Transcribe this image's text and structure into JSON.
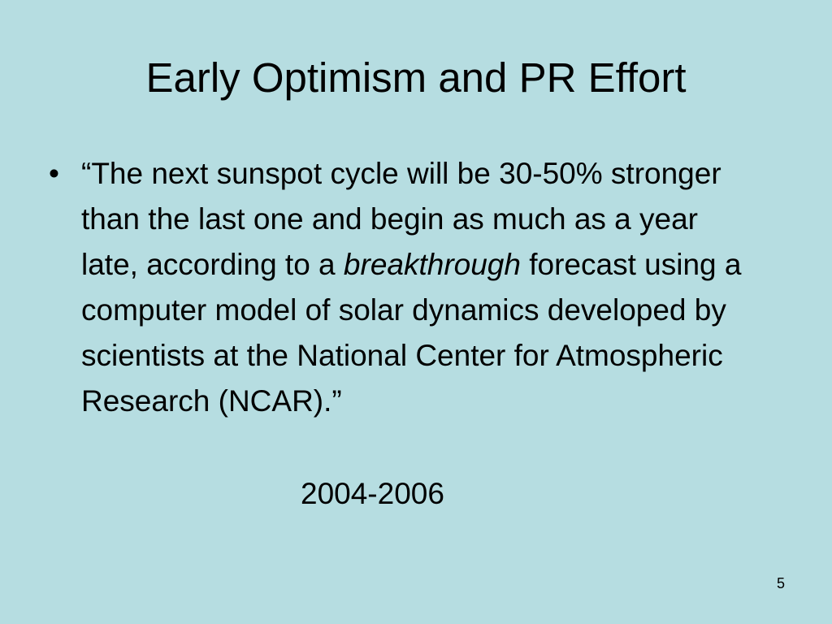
{
  "slide": {
    "title": "Early Optimism and PR Effort",
    "bullet_marker": "•",
    "quote": {
      "before_emphasis": "“The next sunspot cycle will be 30-50% stronger than the last one and begin as much as a year late, according to a ",
      "emphasis": "breakthrough",
      "after_emphasis": " forecast using a computer model of solar dynamics developed by scientists at the National Center for Atmospheric Research (NCAR).”"
    },
    "date_range": "2004-2006",
    "page_number": "5"
  },
  "colors": {
    "background": "#b6dde1",
    "text": "#000000"
  }
}
